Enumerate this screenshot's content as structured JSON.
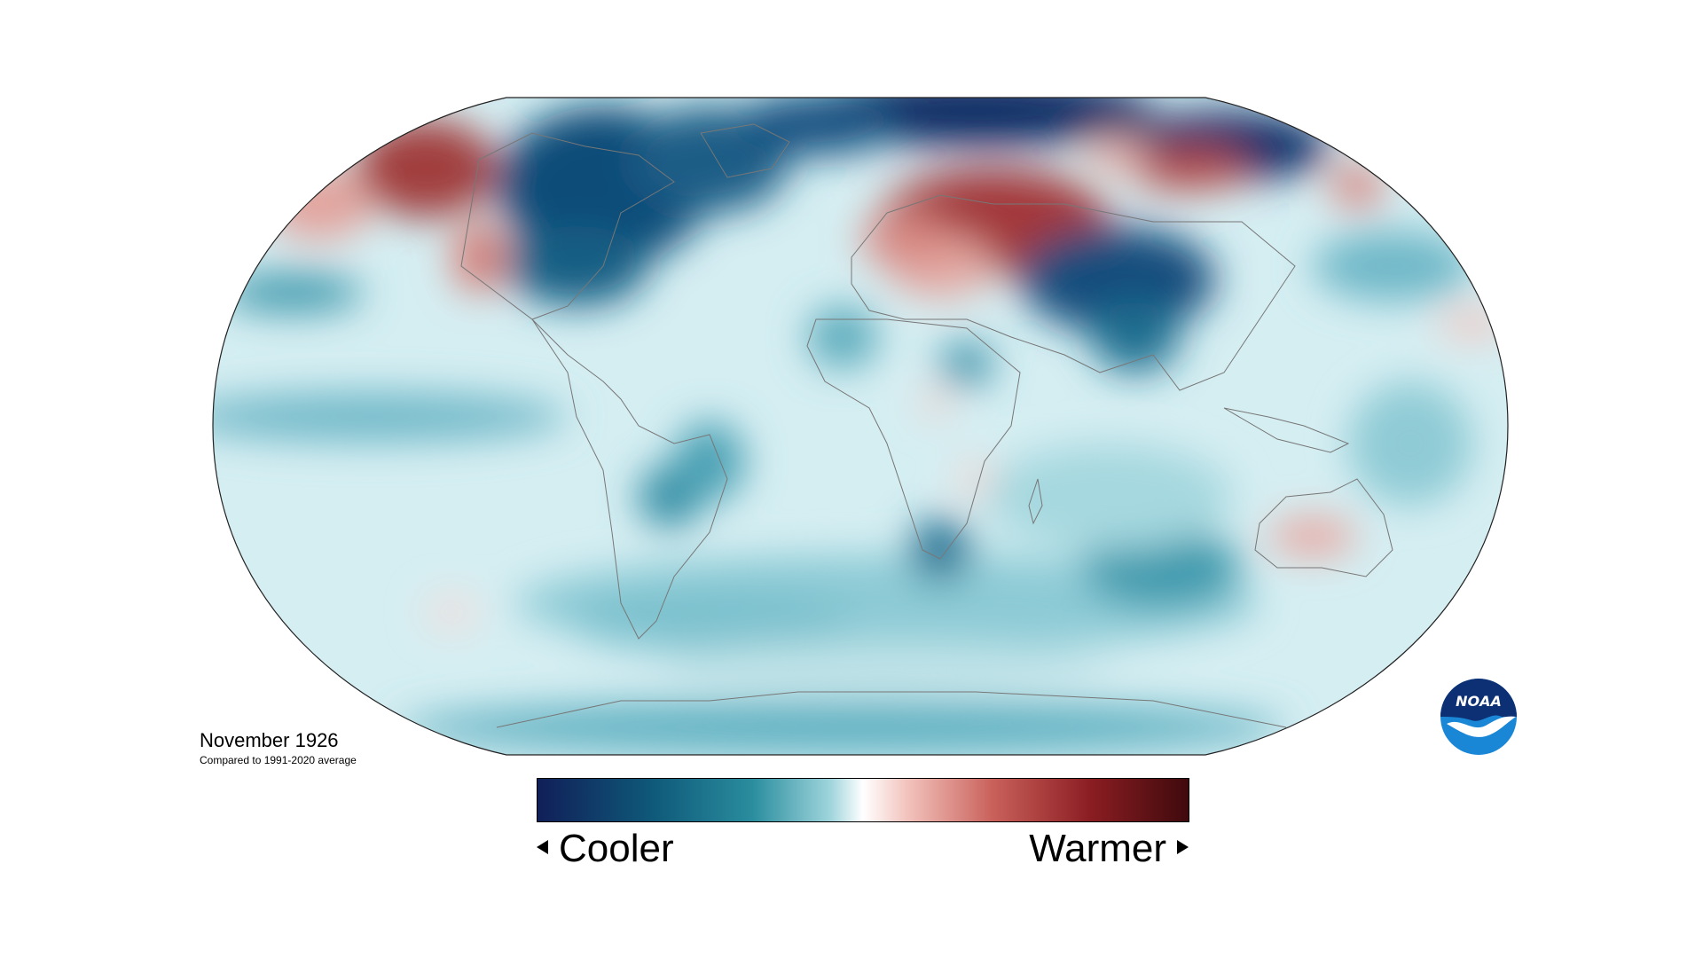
{
  "map": {
    "title": "November 1926",
    "subtitle": "Compared to 1991-2020 average",
    "projection": "Robinson",
    "layer": "surface temperature anomaly",
    "continent_outline_color": "#777777"
  },
  "legend": {
    "cooler_label": "Cooler",
    "warmer_label": "Warmer",
    "colors": [
      "#101f58",
      "#0f5a7a",
      "#2a8d9e",
      "#9fd5dc",
      "#ffffff",
      "#f2c1bb",
      "#c9605a",
      "#8a1d22",
      "#3f0a0d"
    ]
  },
  "anomalies": [
    {
      "region": "Eurasian Arctic",
      "sign": "cooler",
      "strength": "strong"
    },
    {
      "region": "Canada and Greenland",
      "sign": "cooler",
      "strength": "strong"
    },
    {
      "region": "Eastern Europe and Western Russia",
      "sign": "warmer",
      "strength": "strong"
    },
    {
      "region": "Central Asia",
      "sign": "cooler",
      "strength": "strong"
    },
    {
      "region": "Northeast Siberia",
      "sign": "warmer",
      "strength": "moderate"
    },
    {
      "region": "Alaska",
      "sign": "warmer",
      "strength": "moderate"
    },
    {
      "region": "Central Australia",
      "sign": "warmer",
      "strength": "weak"
    },
    {
      "region": "Southern Africa",
      "sign": "cooler",
      "strength": "moderate"
    },
    {
      "region": "Tropical Pacific",
      "sign": "cooler",
      "strength": "moderate"
    },
    {
      "region": "Southern Ocean",
      "sign": "cooler",
      "strength": "moderate"
    }
  ],
  "logo": {
    "text": "NOAA",
    "colors": {
      "top": "#0d2f74",
      "bottom": "#1a86d6",
      "bird": "#ffffff"
    }
  }
}
